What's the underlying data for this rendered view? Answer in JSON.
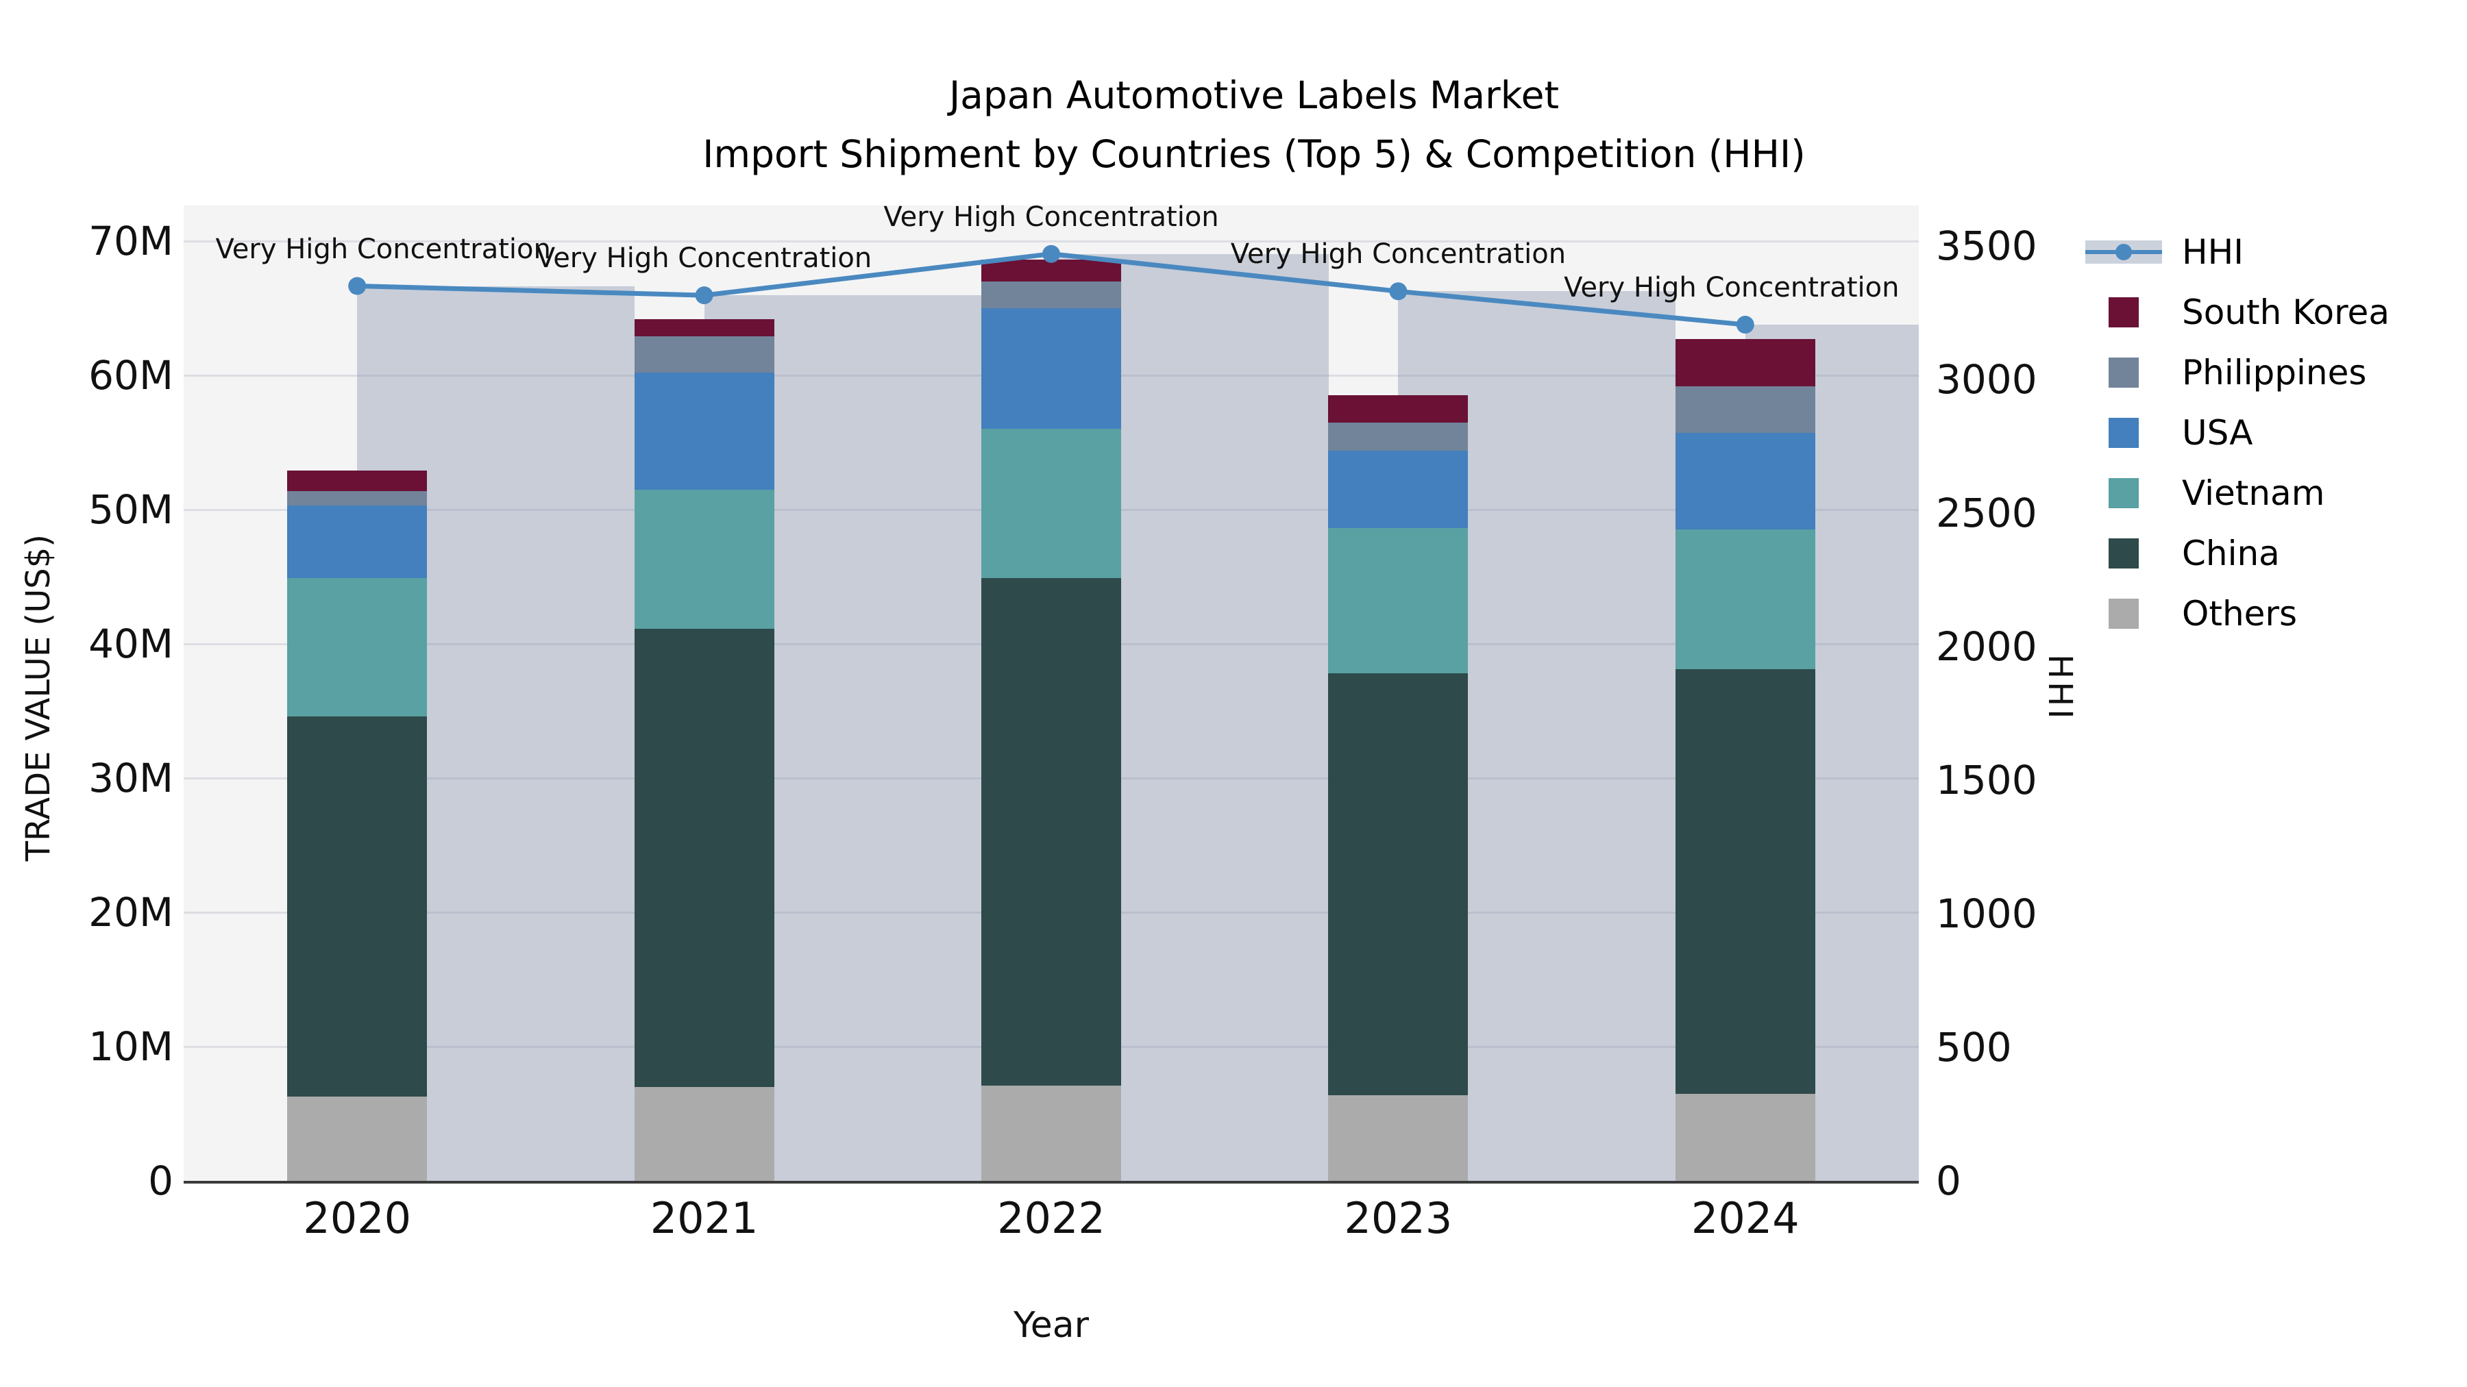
{
  "title": {
    "line1": "Japan Automotive Labels Market",
    "line2": "Import Shipment by Countries (Top 5) & Competition (HHI)"
  },
  "axes": {
    "left": {
      "title": "TRADE VALUE (US$)",
      "ticks": [
        "0",
        "10M",
        "20M",
        "30M",
        "40M",
        "50M",
        "60M",
        "70M"
      ],
      "max_m": 70
    },
    "right": {
      "title": "HHI",
      "ticks": [
        "0",
        "500",
        "1000",
        "1500",
        "2000",
        "2500",
        "3000",
        "3500"
      ],
      "max": 3500
    },
    "x": {
      "title": "Year"
    }
  },
  "chart_data": {
    "type": "bar",
    "subtype": "stacked-bars-with-hhi-line",
    "title": "Japan Automotive Labels Market — Import Shipment by Countries (Top 5) & Competition (HHI)",
    "categories": [
      "2020",
      "2021",
      "2022",
      "2023",
      "2024"
    ],
    "value_unit": "million US$",
    "ylabel": "TRADE VALUE (US$)",
    "y2label": "HHI",
    "xlabel": "Year",
    "ylim_m": [
      0,
      70
    ],
    "y2lim": [
      0,
      3500
    ],
    "grid": "horizontal",
    "legend_position": "right",
    "series": [
      {
        "name": "Others",
        "color": "#ababab",
        "values_m": [
          6.3,
          7.0,
          7.1,
          6.4,
          6.5
        ]
      },
      {
        "name": "China",
        "color": "#2e4a4a",
        "values_m": [
          28.3,
          34.1,
          37.8,
          31.4,
          31.6
        ]
      },
      {
        "name": "Vietnam",
        "color": "#59a1a3",
        "values_m": [
          10.3,
          10.4,
          11.1,
          10.8,
          10.4
        ]
      },
      {
        "name": "USA",
        "color": "#4380bd",
        "values_m": [
          5.4,
          8.7,
          9.0,
          5.8,
          7.2
        ]
      },
      {
        "name": "Philippines",
        "color": "#72849a",
        "values_m": [
          1.1,
          2.7,
          2.0,
          2.1,
          3.5
        ]
      },
      {
        "name": "South Korea",
        "color": "#6a1135",
        "values_m": [
          1.5,
          1.3,
          1.6,
          2.0,
          3.5
        ]
      }
    ],
    "totals_m": [
      52.9,
      64.2,
      68.6,
      58.5,
      62.7
    ],
    "line": {
      "name": "HHI",
      "color": "#4a89c0",
      "band_color": "#7d8ba5",
      "band_alpha": 0.37,
      "values": [
        3350,
        3315,
        3470,
        3330,
        3205
      ]
    },
    "annotations": [
      "Very High Concentration",
      "Very High Concentration",
      "Very High Concentration",
      "Very High Concentration",
      "Very High Concentration"
    ]
  },
  "legend": {
    "items": [
      "HHI",
      "South Korea",
      "Philippines",
      "USA",
      "Vietnam",
      "China",
      "Others"
    ]
  }
}
